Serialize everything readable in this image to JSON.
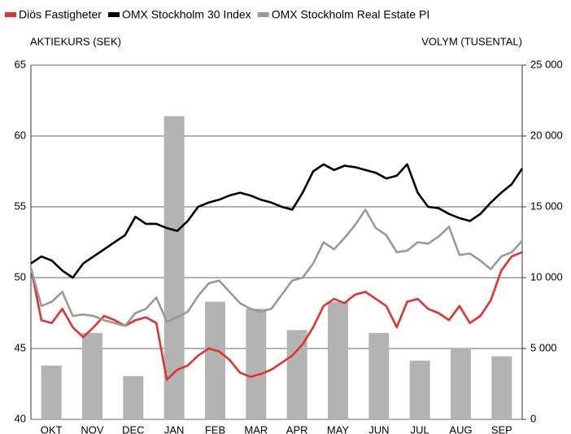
{
  "chart_data": [
    {
      "type": "bar",
      "y2label": "VOLYM (TUSENTAL)",
      "categories": [
        "OKT",
        "NOV",
        "DEC",
        "JAN",
        "FEB",
        "MAR",
        "APR",
        "MAY",
        "JUN",
        "JUL",
        "AUG",
        "SEP"
      ],
      "series": [
        {
          "color": "#b3b3b3",
          "axis": "y2",
          "values": [
            3800,
            6100,
            3050,
            21400,
            8300,
            7800,
            6300,
            8300,
            6100,
            4150,
            5050,
            4450
          ]
        }
      ],
      "y2lim": [
        0,
        25000
      ],
      "y2ticks": [
        0,
        {
          "value": 5000,
          "label": "5 000"
        },
        {
          "value": 10000,
          "label": "10 000"
        },
        {
          "value": 15000,
          "label": "15 000"
        },
        {
          "value": 20000,
          "label": "20 000"
        },
        {
          "value": 25000,
          "label": "25 000"
        }
      ]
    },
    {
      "type": "line",
      "ylabel": "AKTIEKURS (SEK)",
      "ylim": [
        40,
        65
      ],
      "yticks": [
        40,
        45,
        50,
        55,
        60,
        65
      ],
      "grid": true,
      "series": [
        {
          "name": "Diös Fastigheter",
          "color": "#e4312e",
          "values": [
            50.7,
            47,
            46.8,
            47.8,
            46.5,
            45.8,
            46.5,
            47.3,
            47,
            46.6,
            47,
            47.2,
            46.8,
            42.8,
            43.5,
            43.8,
            44.5,
            45,
            44.8,
            44.2,
            43.3,
            43,
            43.2,
            43.5,
            44,
            44.5,
            45.3,
            46.5,
            48,
            48.5,
            48.2,
            48.8,
            49,
            48.5,
            48,
            46.5,
            48.3,
            48.5,
            47.8,
            47.5,
            47,
            48,
            46.8,
            47.3,
            48.4,
            50.5,
            51.5,
            51.8
          ]
        },
        {
          "name": "OMX Stockholm 30 Index",
          "color": "#000000",
          "values": [
            51,
            51.5,
            51.2,
            50.5,
            50,
            51,
            51.5,
            52,
            52.5,
            53,
            54.3,
            53.8,
            53.8,
            53.5,
            53.3,
            54,
            55,
            55.3,
            55.5,
            55.8,
            56,
            55.8,
            55.5,
            55.3,
            55,
            54.8,
            56,
            57.5,
            58,
            57.6,
            57.9,
            57.8,
            57.6,
            57.4,
            57,
            57.2,
            58,
            56,
            55,
            54.9,
            54.5,
            54.2,
            54,
            54.5,
            55.3,
            56,
            56.6,
            57.7
          ]
        },
        {
          "name": "OMX Stockholm Real Estate PI",
          "color": "#999999",
          "values": [
            50.7,
            48,
            48.3,
            49,
            47.3,
            47.4,
            47.3,
            47,
            46.8,
            46.6,
            47.5,
            47.8,
            48.6,
            46.9,
            47.2,
            47.6,
            48.7,
            49.6,
            49.8,
            49,
            48.2,
            47.8,
            47.6,
            47.8,
            48.8,
            49.8,
            50,
            51,
            52.5,
            52,
            52.8,
            53.7,
            54.8,
            53.5,
            53,
            51.8,
            51.9,
            52.5,
            52.4,
            52.9,
            53.6,
            51.6,
            51.7,
            51.2,
            50.6,
            51.5,
            51.8,
            52.6
          ]
        }
      ]
    }
  ]
}
